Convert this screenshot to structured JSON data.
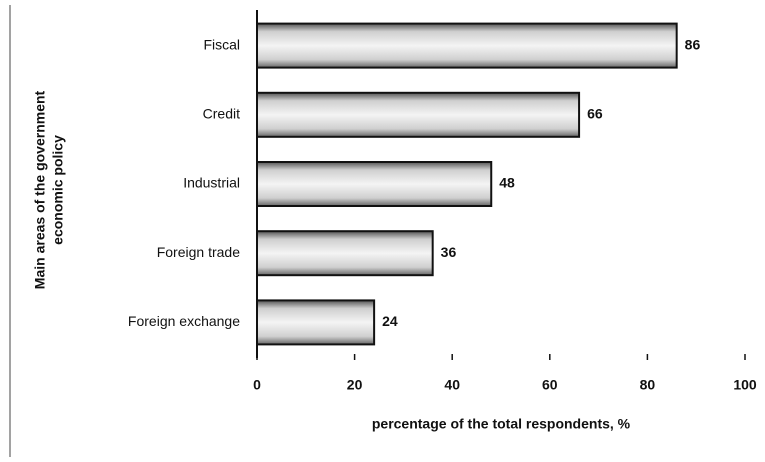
{
  "chart_data": {
    "type": "barh",
    "categories": [
      "Fiscal",
      "Credit",
      "Industrial",
      "Foreign trade",
      "Foreign exchange"
    ],
    "values": [
      86,
      66,
      48,
      36,
      24
    ],
    "color": "#a8a8a8",
    "x_label": "percentage of the total respondents, %",
    "y_label": [
      "Main areas of the government",
      "economic policy"
    ],
    "xlim": [
      0,
      100
    ],
    "xticks": [
      0,
      20,
      40,
      60,
      80,
      100
    ]
  }
}
